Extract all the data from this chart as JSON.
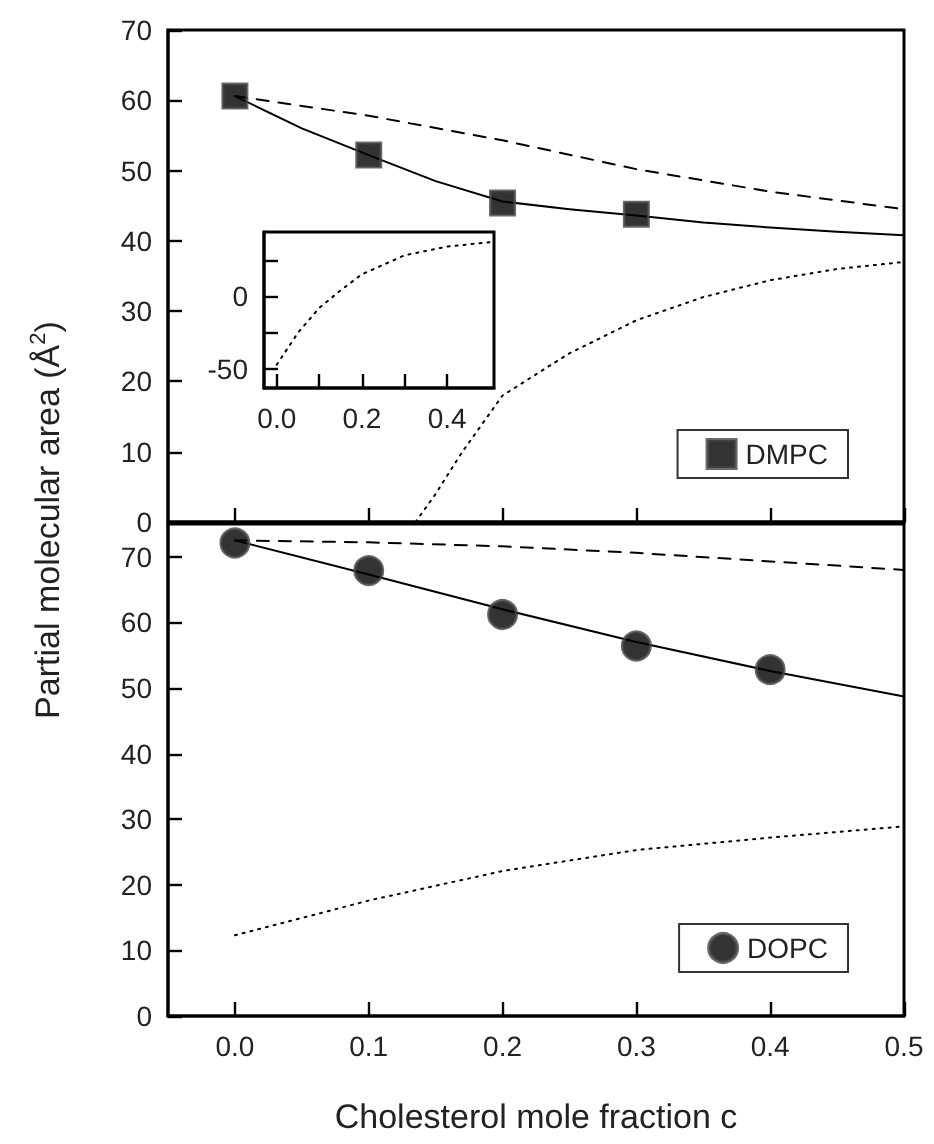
{
  "chart_data": [
    {
      "type": "scatter",
      "xlim": [
        -0.05,
        0.5
      ],
      "xticks": [
        0,
        0.1,
        0.2,
        0.3,
        0.4,
        0.5
      ],
      "ylim": [
        0,
        70
      ],
      "yticks": [
        0,
        10,
        20,
        30,
        40,
        50,
        60,
        70
      ],
      "tick_labels": "y",
      "legend": "bottom right",
      "grid": false,
      "series": [
        {
          "type": "line",
          "color": "#000000",
          "line_style": "solid",
          "marker": "none",
          "x": [
            0,
            0.05,
            0.1,
            0.15,
            0.2,
            0.25,
            0.3,
            0.35,
            0.4,
            0.45,
            0.5
          ],
          "values": [
            60.6,
            56,
            52.2,
            48.5,
            45.6,
            44.5,
            43.6,
            42.6,
            41.9,
            41.3,
            40.8
          ]
        },
        {
          "type": "line",
          "color": "#000000",
          "line_style": "dashed",
          "marker": "none",
          "x": [
            0,
            0.1,
            0.2,
            0.3,
            0.4,
            0.5
          ],
          "values": [
            60.6,
            57.8,
            54.3,
            50.2,
            47,
            44.5
          ]
        },
        {
          "type": "line",
          "color": "#000000",
          "line_style": "dotted",
          "marker": "none",
          "x": [
            0.135,
            0.15,
            0.17,
            0.2,
            0.25,
            0.3,
            0.35,
            0.4,
            0.45,
            0.5
          ],
          "values": [
            0,
            4,
            10,
            18,
            24,
            28.7,
            32,
            34.4,
            36,
            37
          ]
        },
        {
          "name": "DMPC",
          "color": "#000000",
          "marker": "square",
          "x": [
            0,
            0.1,
            0.2,
            0.3
          ],
          "values": [
            60.6,
            52.2,
            45.4,
            43.8
          ]
        }
      ]
    },
    {
      "type": "line",
      "xlim": [
        -0.03,
        0.51
      ],
      "xticks": [
        {
          "value": 0,
          "label": "0.0"
        },
        {
          "value": 0.1,
          "label": null
        },
        {
          "value": 0.2,
          "label": "0.2"
        },
        {
          "value": 0.3,
          "label": null
        },
        {
          "value": 0.4,
          "label": "0.4"
        }
      ],
      "ylim": [
        -63,
        44
      ],
      "yticks": [
        -50,
        {
          "value": -25,
          "label": null
        },
        0,
        {
          "value": 25,
          "label": null
        }
      ],
      "grid": false,
      "series": [
        {
          "color": "#000000",
          "line_style": "dotted",
          "marker": "none",
          "x": [
            0,
            0.05,
            0.1,
            0.15,
            0.2,
            0.3,
            0.4,
            0.5
          ],
          "values": [
            -47,
            -25,
            -8,
            4,
            15,
            28,
            34,
            37
          ]
        }
      ]
    },
    {
      "type": "scatter",
      "xlabel": "Cholesterol mole fraction c",
      "ylabel": "Partial molecular area (Å$^{2}$)",
      "xlim": [
        -0.05,
        0.5
      ],
      "xticks": [
        {
          "value": 0,
          "label": "0.0"
        },
        0.1,
        0.2,
        0.3,
        0.4,
        0.5
      ],
      "ylim": [
        0,
        75
      ],
      "yticks": [
        0,
        10,
        20,
        30,
        40,
        50,
        60,
        70
      ],
      "legend": "bottom right",
      "grid": false,
      "series": [
        {
          "type": "line",
          "color": "#000000",
          "line_style": "solid",
          "marker": "none",
          "x": [
            0,
            0.1,
            0.2,
            0.3,
            0.4,
            0.5
          ],
          "values": [
            72.5,
            67.3,
            62,
            57,
            52.6,
            48.7
          ]
        },
        {
          "type": "line",
          "color": "#000000",
          "line_style": "dashed",
          "marker": "none",
          "x": [
            0,
            0.1,
            0.2,
            0.3,
            0.4,
            0.5
          ],
          "values": [
            72.5,
            72.2,
            71.6,
            70.6,
            69.3,
            68
          ]
        },
        {
          "type": "line",
          "color": "#000000",
          "line_style": "dotted",
          "marker": "none",
          "x": [
            0,
            0.1,
            0.2,
            0.3,
            0.4,
            0.5
          ],
          "values": [
            12.3,
            17.6,
            22.1,
            25.3,
            27.2,
            28.9
          ]
        },
        {
          "name": "DOPC",
          "color": "#000000",
          "marker": "circle",
          "x": [
            0,
            0.1,
            0.2,
            0.3,
            0.4
          ],
          "values": [
            72.1,
            67.9,
            61.2,
            56.4,
            52.8
          ]
        }
      ]
    }
  ]
}
